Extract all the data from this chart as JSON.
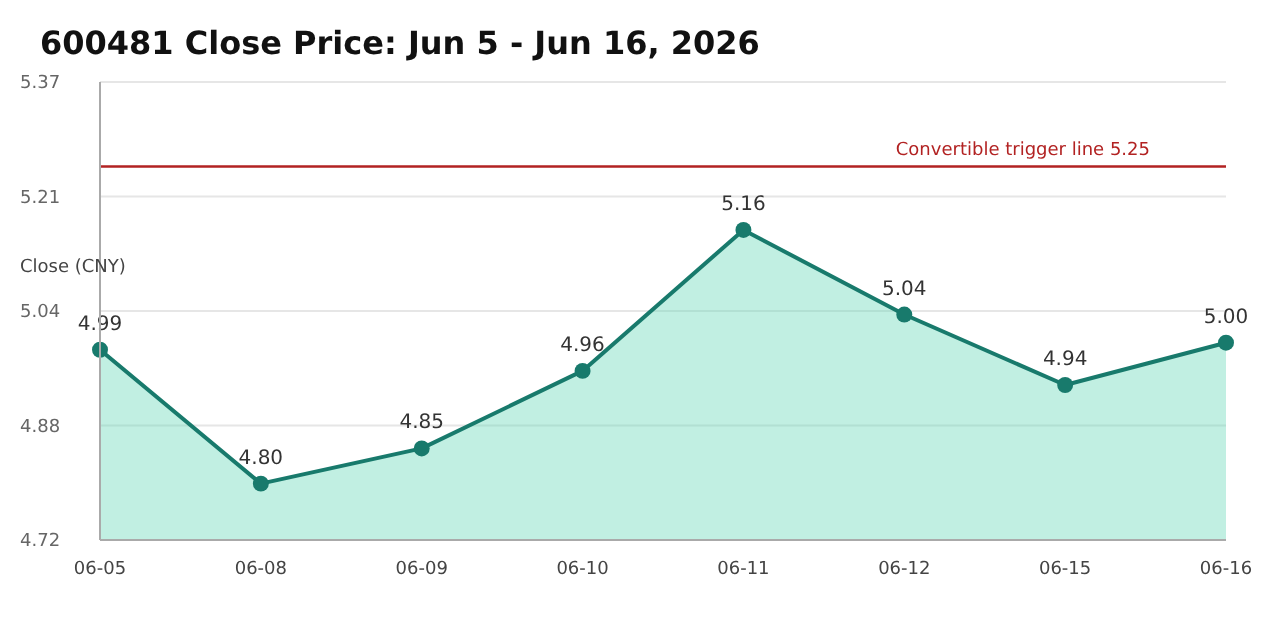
{
  "chart_data": {
    "type": "area",
    "title": "600481 Close Price: Jun 5 - Jun 16, 2026",
    "ylabel": "Close (CNY)",
    "categories": [
      "06-05",
      "06-08",
      "06-09",
      "06-10",
      "06-11",
      "06-12",
      "06-15",
      "06-16"
    ],
    "series": [
      {
        "color": "#187a6c",
        "values": [
          4.99,
          4.8,
          4.85,
          4.96,
          5.16,
          5.04,
          4.94,
          5.0
        ],
        "value_labels": [
          "4.99",
          "4.80",
          "4.85",
          "4.96",
          "5.16",
          "5.04",
          "4.94",
          "5.00"
        ]
      }
    ],
    "ylim": [
      4.72,
      5.37
    ],
    "yticks": [
      {
        "value": 4.72,
        "label": "4.72"
      },
      {
        "value": 4.8825,
        "label": "4.88"
      },
      {
        "value": 5.045,
        "label": "5.04"
      },
      {
        "value": 5.2075,
        "label": "5.21"
      },
      {
        "value": 5.37,
        "label": "5.37"
      }
    ],
    "ref_lines": [
      {
        "axis": "y",
        "value": 5.25,
        "label": "Convertible trigger line 5.25",
        "color": "#b22222"
      }
    ],
    "grid": "y",
    "marker": "circle"
  }
}
